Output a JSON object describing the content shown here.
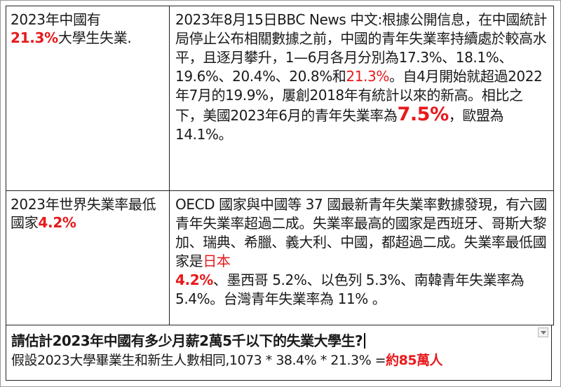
{
  "rows": [
    {
      "left": {
        "t1": "2023年中國有",
        "t2": "21.3%",
        "t3": "大學生失業."
      },
      "right": {
        "p1": " 2023年8月15日BBC News 中文:根據公開信息，在中國統計局停止公布相關數據之前，中國的青年失業率持續處於較高水平，且逐月攀升，1—6月各月分別為17.3%、18.1%、19.6%、20.4%、20.8%和",
        "r1": "21.3%",
        "p2": "。自4月開始就超過2022年7月的19.9%，屢創2018年有統計以來的新高。相比之下，美國2023年6月的青年失業率為",
        "r2": "7.5%",
        "p3": "，歐盟為14.1%。"
      }
    },
    {
      "left": {
        "t1": "2023年世界失業率最低國家",
        "t2": "4.2%"
      },
      "right": {
        "p1": "OECD 國家與中國等 37 國最新青年失業率數據發現，有六國青年失業率超過二成。失業率最高的國家是西班牙、哥斯大黎加、瑞典、希臘、義大利、中國，都超過二成。失業率最低國家是",
        "r1": "日本",
        "r2": "4.2%",
        "p2": "、墨西哥 5.2%、以色列 5.3%、南韓青年失業率為 5.4%。台灣青年失業率為 11% 。"
      }
    }
  ],
  "bottom": {
    "question": "請估計2023年中國有多少月薪2萬5千以下的失業大學生?",
    "answer_prefix": "假設2023大學畢業生和新生人數相同,1073 * 38.4% * 21.3% =",
    "answer_result": "約85萬人"
  },
  "colors": {
    "highlight": "#e8191c",
    "text": "#1a1a1a",
    "border": "#222222"
  }
}
